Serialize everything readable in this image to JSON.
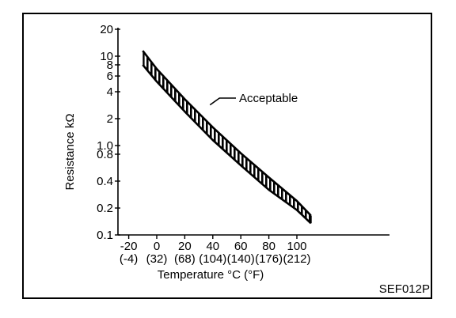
{
  "chart_data": {
    "type": "area",
    "ylabel": "Resistance kΩ",
    "xlabel": "Temperature °C (°F)",
    "y_scale": "log",
    "ylim": [
      0.1,
      20
    ],
    "xlim": [
      -30,
      120
    ],
    "y_ticks": [
      {
        "value": 20,
        "label": "20"
      },
      {
        "value": 10,
        "label": "10"
      },
      {
        "value": 8,
        "label": "8"
      },
      {
        "value": 6,
        "label": "6"
      },
      {
        "value": 4,
        "label": "4"
      },
      {
        "value": 2,
        "label": "2"
      },
      {
        "value": 1.0,
        "label": "1.0"
      },
      {
        "value": 0.8,
        "label": "0.8"
      },
      {
        "value": 0.4,
        "label": "0.4"
      },
      {
        "value": 0.2,
        "label": "0.2"
      },
      {
        "value": 0.1,
        "label": "0.1"
      }
    ],
    "x_ticks": [
      {
        "value": -20,
        "label": "-20",
        "label_f": "(-4)"
      },
      {
        "value": 0,
        "label": "0",
        "label_f": "(32)"
      },
      {
        "value": 20,
        "label": "20",
        "label_f": "(68)"
      },
      {
        "value": 40,
        "label": "40",
        "label_f": "(104)"
      },
      {
        "value": 60,
        "label": "60",
        "label_f": "(140)"
      },
      {
        "value": 80,
        "label": "80",
        "label_f": "(176)"
      },
      {
        "value": 100,
        "label": "100",
        "label_f": "(212)"
      }
    ],
    "band_upper": [
      {
        "x": -10,
        "y": 11.5
      },
      {
        "x": 0,
        "y": 7.2
      },
      {
        "x": 20,
        "y": 3.3
      },
      {
        "x": 40,
        "y": 1.6
      },
      {
        "x": 60,
        "y": 0.82
      },
      {
        "x": 80,
        "y": 0.44
      },
      {
        "x": 100,
        "y": 0.24
      },
      {
        "x": 110,
        "y": 0.165
      }
    ],
    "band_lower": [
      {
        "x": -10,
        "y": 8.0
      },
      {
        "x": 0,
        "y": 5.2
      },
      {
        "x": 20,
        "y": 2.4
      },
      {
        "x": 40,
        "y": 1.15
      },
      {
        "x": 60,
        "y": 0.6
      },
      {
        "x": 80,
        "y": 0.32
      },
      {
        "x": 100,
        "y": 0.19
      },
      {
        "x": 110,
        "y": 0.135
      }
    ],
    "annotation": {
      "text": "Acceptable",
      "x": 38,
      "y": 2.85
    },
    "grid": false,
    "figure_id": "SEF012P"
  },
  "colors": {
    "ink": "#000000",
    "background": "#ffffff"
  }
}
